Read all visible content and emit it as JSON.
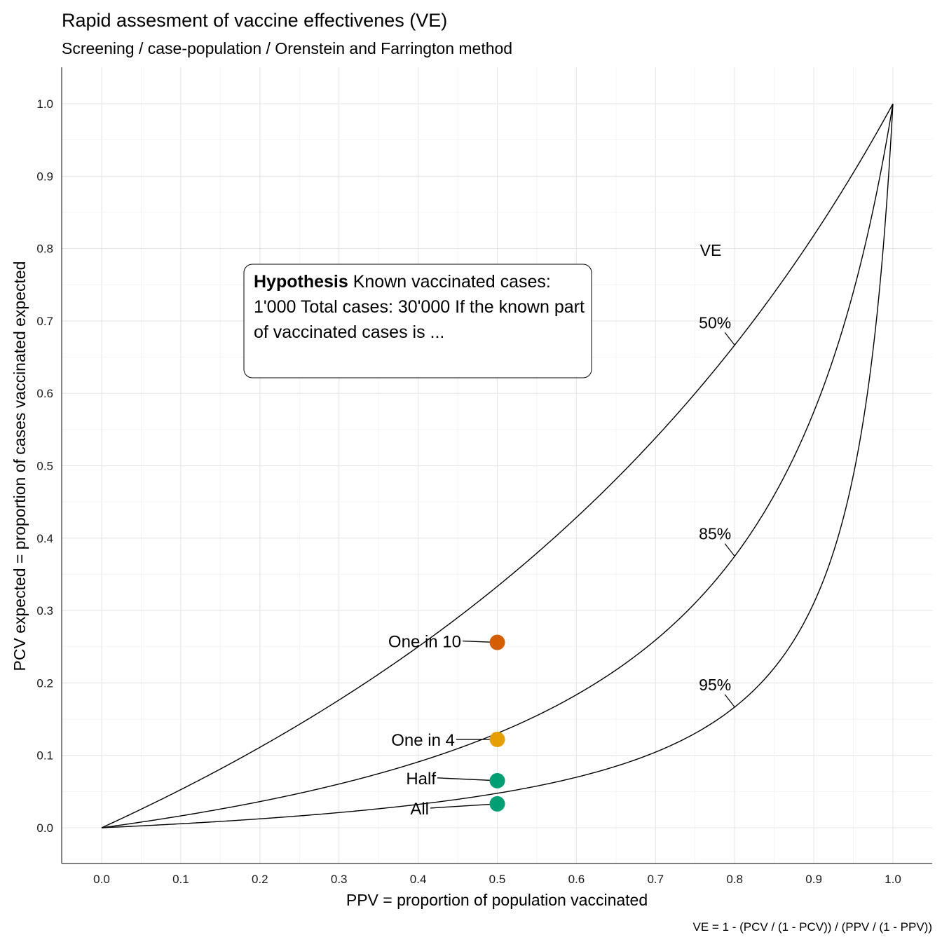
{
  "chart_data": {
    "type": "line",
    "title": "Rapid assesment of vaccine effectivenes (VE)",
    "subtitle": "Screening / case-population / Orenstein and Farrington method",
    "xlabel": "PPV = proportion of population vaccinated",
    "ylabel": "PCV expected = proportion of cases vaccinated expected",
    "caption": "VE = 1 - (PCV / (1 - PCV)) / (PPV / (1 - PPV))",
    "xlim": [
      0,
      1
    ],
    "ylim": [
      0,
      1
    ],
    "x_ticks": [
      "0.0",
      "0.1",
      "0.2",
      "0.3",
      "0.4",
      "0.5",
      "0.6",
      "0.7",
      "0.8",
      "0.9",
      "1.0"
    ],
    "y_ticks": [
      "0.0",
      "0.1",
      "0.2",
      "0.3",
      "0.4",
      "0.5",
      "0.6",
      "0.7",
      "0.8",
      "0.9",
      "1.0"
    ],
    "grid": true,
    "legend_title": "VE",
    "series": [
      {
        "name": "50%",
        "ve": 0.5,
        "label_at_x": 0.8
      },
      {
        "name": "85%",
        "ve": 0.85,
        "label_at_x": 0.8
      },
      {
        "name": "95%",
        "ve": 0.95,
        "label_at_x": 0.8
      }
    ],
    "points": [
      {
        "label": "One in 10",
        "x": 0.5,
        "y": 0.256,
        "color": "#D55E00"
      },
      {
        "label": "One in 4",
        "x": 0.5,
        "y": 0.122,
        "color": "#E69F00"
      },
      {
        "label": "Half",
        "x": 0.5,
        "y": 0.065,
        "color": "#009E73"
      },
      {
        "label": "All",
        "x": 0.5,
        "y": 0.033,
        "color": "#009E73"
      }
    ],
    "annotation": {
      "bold": "Hypothesis",
      "text": " Known vaccinated cases: 1'000 Total cases: 30'000 If the known part of vaccinated cases is ..."
    }
  }
}
